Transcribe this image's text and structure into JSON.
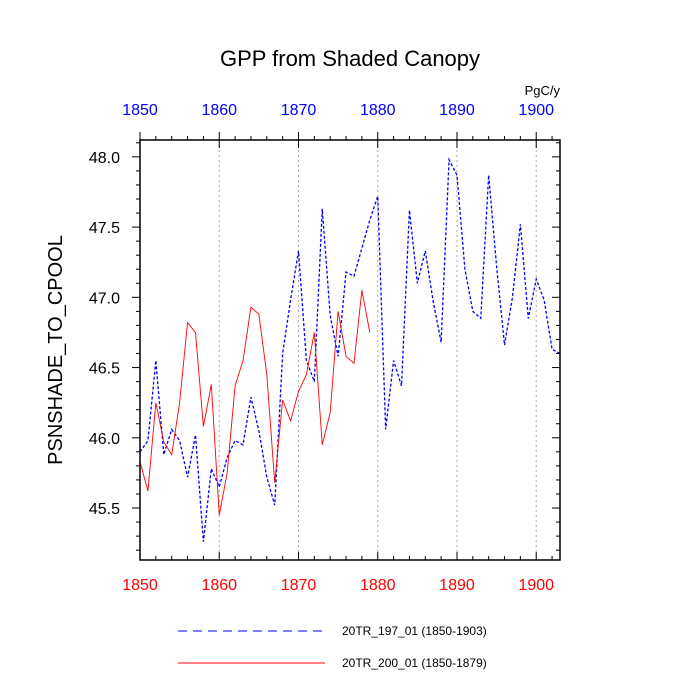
{
  "chart_data": {
    "type": "line",
    "title": "GPP from Shaded Canopy",
    "ylabel": "PSNSHADE_TO_CPOOL",
    "units": "PgC/y",
    "xlim": [
      1850,
      1903
    ],
    "ylim": [
      45.13,
      48.12
    ],
    "xticks": [
      1850,
      1860,
      1870,
      1880,
      1890,
      1900
    ],
    "yticks": [
      "45.5",
      "46.0",
      "46.5",
      "47.0",
      "47.5",
      "48.0"
    ],
    "x_axis_color_top": "#0000ff",
    "x_axis_color_bottom": "#ff0000",
    "grid": "vertical dotted at major ticks",
    "legend_position": "bottom",
    "series": [
      {
        "name": "20TR_197_01 (1850-1903)",
        "color": "#0000ff",
        "style": "dashed",
        "x": [
          1850,
          1851,
          1852,
          1853,
          1854,
          1855,
          1856,
          1857,
          1858,
          1859,
          1860,
          1861,
          1862,
          1863,
          1864,
          1865,
          1866,
          1867,
          1868,
          1869,
          1870,
          1871,
          1872,
          1873,
          1874,
          1875,
          1876,
          1877,
          1878,
          1879,
          1880,
          1881,
          1882,
          1883,
          1884,
          1885,
          1886,
          1887,
          1888,
          1889,
          1890,
          1891,
          1892,
          1893,
          1894,
          1895,
          1896,
          1897,
          1898,
          1899,
          1900,
          1901,
          1902,
          1903
        ],
        "values": [
          45.9,
          45.98,
          46.55,
          45.88,
          46.06,
          45.98,
          45.72,
          46.02,
          45.26,
          45.78,
          45.65,
          45.86,
          45.98,
          45.95,
          46.29,
          46.05,
          45.72,
          45.52,
          46.6,
          46.98,
          47.33,
          46.55,
          46.4,
          47.63,
          46.87,
          46.58,
          47.18,
          47.15,
          47.35,
          47.55,
          47.72,
          46.06,
          46.55,
          46.37,
          47.62,
          47.1,
          47.33,
          46.97,
          46.68,
          47.98,
          47.87,
          47.2,
          46.9,
          46.85,
          47.87,
          47.22,
          46.66,
          47.0,
          47.52,
          46.85,
          47.13,
          46.98,
          46.63,
          46.6
        ]
      },
      {
        "name": "20TR_200_01 (1850-1879)",
        "color": "#ff0000",
        "style": "solid",
        "x": [
          1850,
          1851,
          1852,
          1853,
          1854,
          1855,
          1856,
          1857,
          1858,
          1859,
          1860,
          1861,
          1862,
          1863,
          1864,
          1865,
          1866,
          1867,
          1868,
          1869,
          1870,
          1871,
          1872,
          1873,
          1874,
          1875,
          1876,
          1877,
          1878,
          1879
        ],
        "values": [
          45.83,
          45.62,
          46.25,
          45.97,
          45.88,
          46.25,
          46.82,
          46.75,
          46.08,
          46.38,
          45.45,
          45.75,
          46.37,
          46.55,
          46.93,
          46.88,
          46.45,
          45.68,
          46.27,
          46.12,
          46.33,
          46.45,
          46.75,
          45.95,
          46.18,
          46.9,
          46.58,
          46.53,
          47.05,
          46.75
        ]
      }
    ]
  }
}
